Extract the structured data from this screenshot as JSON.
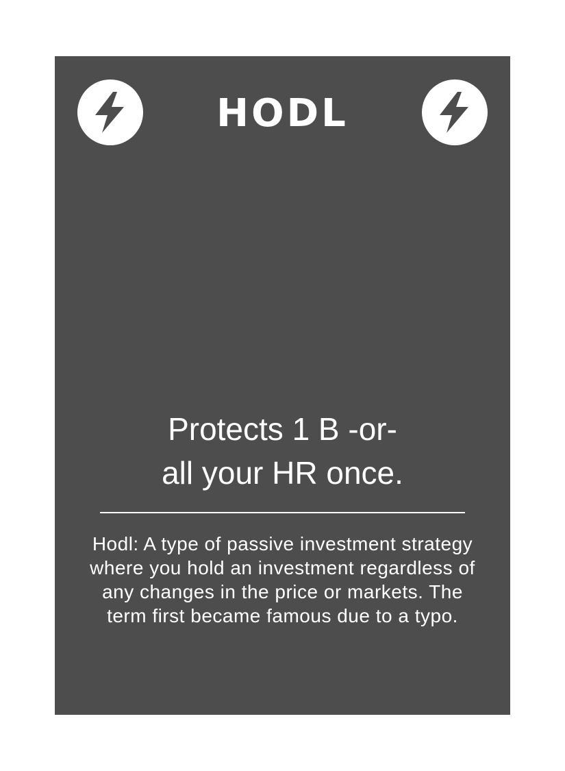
{
  "card": {
    "title": "HODL",
    "effect_lines": [
      "Protects 1 B -or-",
      "all your HR once."
    ],
    "flavor_text": "Hodl: A type of passive investment strategy where you hold an investment regardless of any changes in the price or markets. The term first became famous due to a typo.",
    "icons": [
      "lightning-bolt-icon",
      "lightning-bolt-icon"
    ],
    "colors": {
      "card_background": "#4d4d4d",
      "foreground": "#ffffff"
    }
  }
}
